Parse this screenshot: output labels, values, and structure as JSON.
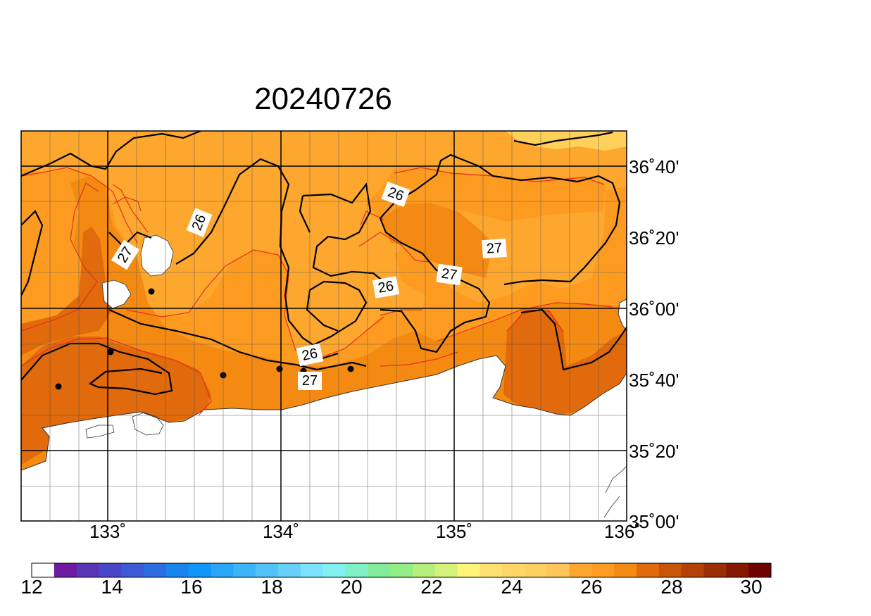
{
  "title": "20240726",
  "map": {
    "lat_labels": [
      "36˚40'",
      "36˚20'",
      "36˚00'",
      "35˚40'",
      "35˚20'",
      "35˚00'"
    ],
    "lon_labels": [
      "133˚",
      "134˚",
      "135˚",
      "136˚"
    ],
    "contour_labels": [
      "26",
      "26",
      "26",
      "26",
      "27",
      "27",
      "27",
      "27"
    ],
    "colors": {
      "sst_25_26": "#fea72f",
      "sst_26_27": "#fd9b21",
      "sst_27_28": "#f48a12",
      "sst_28_29": "#e06a0c",
      "sst_24_25": "#ffd15a",
      "land": "#ffffff",
      "contour_fine": "#e8301a",
      "contour_major": "#000000"
    }
  },
  "colorbar": {
    "tick_labels": [
      "12",
      "14",
      "16",
      "18",
      "20",
      "22",
      "24",
      "26",
      "28",
      "30"
    ],
    "colors": [
      "#ffffff",
      "#6e1aa0",
      "#5a34b4",
      "#4a46c8",
      "#3c5ad6",
      "#2c6ee2",
      "#1a84ee",
      "#0f96f8",
      "#2aa6f8",
      "#3eb4f8",
      "#52c2f8",
      "#66d0f8",
      "#7ae2fa",
      "#82f0f0",
      "#80f0c8",
      "#80ec9c",
      "#90ee84",
      "#b4f07a",
      "#d4f27a",
      "#fef47a",
      "#fee070",
      "#fed668",
      "#fed060",
      "#fec558",
      "#fea72f",
      "#fd9b21",
      "#f48a12",
      "#e06a0c",
      "#c85408",
      "#b44206",
      "#9c2e04",
      "#861802",
      "#6e0000"
    ]
  }
}
